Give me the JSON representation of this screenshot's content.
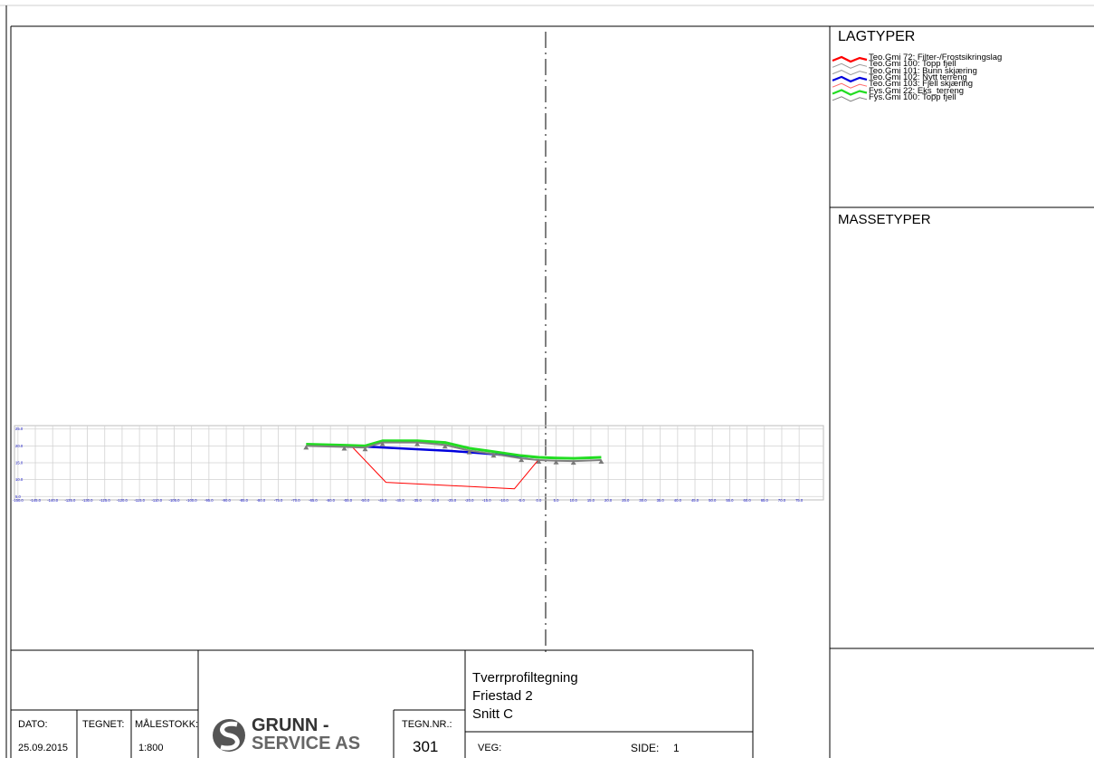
{
  "legend": {
    "title": "LAGTYPER",
    "items": [
      {
        "label": "Teo.Gmi  72: Filter-/Frostsikringslag",
        "color": "#ff0000"
      },
      {
        "label": "Teo.Gmi  100: Topp fjell",
        "color": "#9a9a9a"
      },
      {
        "label": "Teo.Gmi  101: Bunn skjæring",
        "color": "#9a9a9a"
      },
      {
        "label": "Teo.Gmi  102: Nytt terreng",
        "color": "#0000dd"
      },
      {
        "label": "Teo.Gmi  103: Fjell skjæring",
        "color": "#ff6666"
      },
      {
        "label": "Fys.Gmi  22: Eks_terreng",
        "color": "#22dd22"
      },
      {
        "label": "Fys.Gmi  100: Topp fjell",
        "color": "#808080"
      }
    ]
  },
  "masse": {
    "title": "MASSETYPER"
  },
  "titleblock": {
    "dato_label": "DATO:",
    "dato_value": "25.09.2015",
    "tegnet_label": "TEGNET:",
    "tegnet_value": "",
    "malestokk_label": "MÅLESTOKK:",
    "malestokk_value": "1:800",
    "company_line1": "GRUNN -",
    "company_line2": "SERVICE AS",
    "tegnnr_label": "TEGN.NR.:",
    "tegnnr_value": "301",
    "title1": "Tverrprofiltegning",
    "title2": "Friestad 2",
    "title3": "Snitt  C",
    "veg_label": "VEG:",
    "side_label": "SIDE:",
    "side_value": "1"
  },
  "chart_data": {
    "type": "line",
    "x_ticks": [
      -150,
      -145,
      -140,
      -135,
      -130,
      -125,
      -120,
      -115,
      -110,
      -105,
      -100,
      -95,
      -90,
      -85,
      -80,
      -75,
      -70,
      -65,
      -60,
      -55,
      -50,
      -45,
      -40,
      -35,
      -30,
      -25,
      -20,
      -15,
      -10,
      -5,
      0,
      5,
      10,
      15,
      20,
      25,
      30,
      35,
      40,
      45,
      50,
      55,
      60,
      65,
      70,
      75
    ],
    "x_tick_labels": [
      "-150.0",
      "-145.0",
      "-140.0",
      "-135.0",
      "-130.0",
      "-125.0",
      "-120.0",
      "-115.0",
      "-110.0",
      "-105.0",
      "-100.0",
      "-95.0",
      "-90.0",
      "-85.0",
      "-80.0",
      "-75.0",
      "-70.0",
      "-65.0",
      "-60.0",
      "-55.0",
      "-50.0",
      "-45.0",
      "-40.0",
      "-35.0",
      "-30.0",
      "-25.0",
      "-20.0",
      "-15.0",
      "-10.0",
      "-5.0",
      "0.0",
      "5.0",
      "10.0",
      "15.0",
      "20.0",
      "25.0",
      "30.0",
      "35.0",
      "40.0",
      "45.0",
      "50.0",
      "55.0",
      "60.0",
      "65.0",
      "70.0",
      "75.0"
    ],
    "y_ticks": [
      5,
      10,
      15,
      20,
      25
    ],
    "y_tick_labels": [
      "5.0",
      "10.0",
      "15.0",
      "20.0",
      "25.0"
    ],
    "xlim": [
      -151,
      82
    ],
    "ylim": [
      4,
      26
    ],
    "grid": true,
    "series": [
      {
        "name": "Teo.Gmi  72: Filter-/Frostsikringslag",
        "color": "#ff0000",
        "width": 1,
        "x": [
          -54,
          -44,
          -7,
          0
        ],
        "y": [
          20,
          9.2,
          7.3,
          16
        ]
      },
      {
        "name": "Teo.Gmi  102: Nytt terreng",
        "color": "#0000dd",
        "width": 2.5,
        "x": [
          -54,
          -25,
          -10,
          0
        ],
        "y": [
          20,
          18.5,
          17.3,
          16.6
        ]
      },
      {
        "name": "Fys.Gmi  22: Eks_terreng",
        "color": "#22dd22",
        "width": 3,
        "x": [
          -67,
          -56,
          -50,
          -45,
          -35,
          -27,
          -20,
          -13,
          -5,
          0,
          5,
          10,
          18
        ],
        "y": [
          20.5,
          20.2,
          20,
          21.5,
          21.5,
          21,
          19.3,
          18.3,
          17.1,
          16.6,
          16.4,
          16.3,
          16.6
        ]
      },
      {
        "name": "Fys.Gmi  100: Topp fjell",
        "color": "#808080",
        "width": 2,
        "x": [
          -67,
          -56,
          -50,
          -45,
          -35,
          -27,
          -20,
          -13,
          -5,
          0,
          5,
          10,
          18
        ],
        "y": [
          20,
          19.7,
          19.5,
          21,
          21,
          20.3,
          18.6,
          17.6,
          16.3,
          15.8,
          15.6,
          15.5,
          15.8
        ]
      }
    ]
  }
}
